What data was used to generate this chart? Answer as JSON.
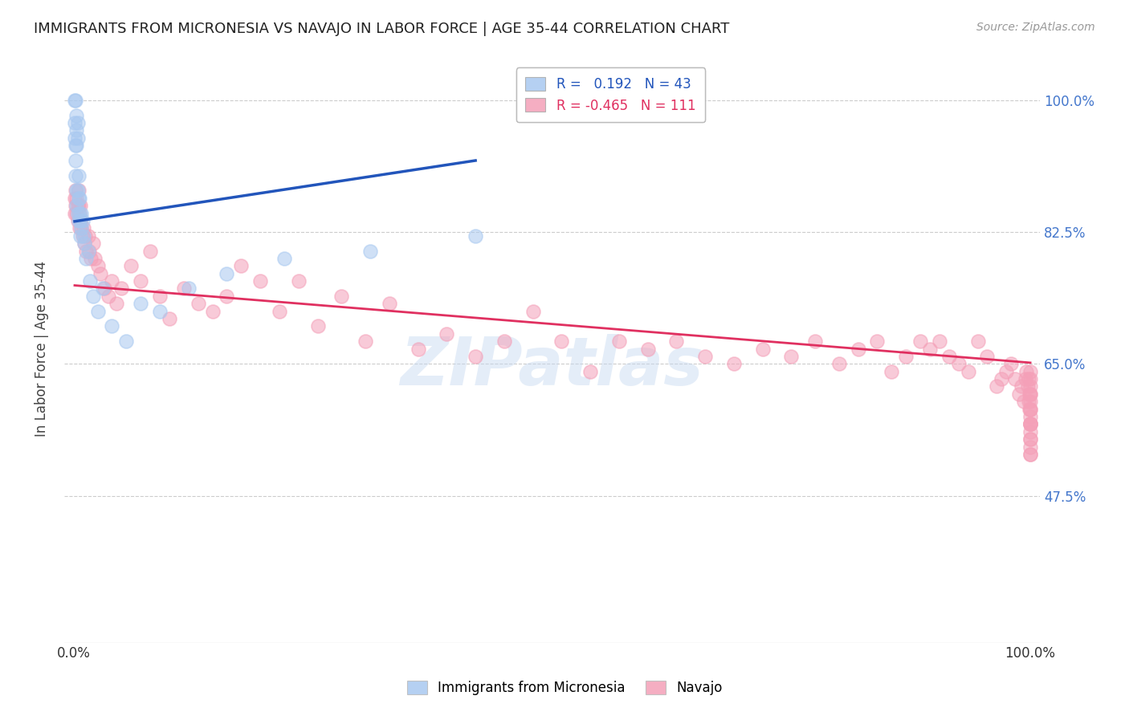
{
  "title": "IMMIGRANTS FROM MICRONESIA VS NAVAJO IN LABOR FORCE | AGE 35-44 CORRELATION CHART",
  "source": "Source: ZipAtlas.com",
  "ylabel": "In Labor Force | Age 35-44",
  "xlim": [
    -0.01,
    1.01
  ],
  "ylim": [
    0.28,
    1.06
  ],
  "yticks": [
    0.475,
    0.65,
    0.825,
    1.0
  ],
  "ytick_labels": [
    "47.5%",
    "65.0%",
    "82.5%",
    "100.0%"
  ],
  "xticks": [
    0.0,
    0.5,
    1.0
  ],
  "xtick_labels": [
    "0.0%",
    "",
    "100.0%"
  ],
  "r_blue": 0.192,
  "n_blue": 43,
  "r_pink": -0.465,
  "n_pink": 111,
  "blue_color": "#A8C8F0",
  "pink_color": "#F4A0B8",
  "blue_line_color": "#2255BB",
  "pink_line_color": "#E03060",
  "legend_blue_label": "Immigrants from Micronesia",
  "legend_pink_label": "Navajo",
  "watermark": "ZIPatlas",
  "background_color": "#FFFFFF",
  "grid_color": "#CCCCCC",
  "title_color": "#222222",
  "axis_label_color": "#444444",
  "right_tick_color": "#4477CC",
  "blue_x": [
    0.001,
    0.001,
    0.001,
    0.002,
    0.002,
    0.002,
    0.002,
    0.003,
    0.003,
    0.003,
    0.003,
    0.003,
    0.004,
    0.004,
    0.004,
    0.004,
    0.005,
    0.005,
    0.005,
    0.006,
    0.006,
    0.007,
    0.007,
    0.008,
    0.008,
    0.009,
    0.01,
    0.011,
    0.013,
    0.015,
    0.017,
    0.02,
    0.025,
    0.03,
    0.04,
    0.055,
    0.07,
    0.09,
    0.12,
    0.16,
    0.22,
    0.31,
    0.42
  ],
  "blue_y": [
    1.0,
    0.97,
    0.95,
    0.94,
    0.92,
    0.9,
    1.0,
    0.98,
    0.96,
    0.94,
    0.88,
    0.86,
    0.97,
    0.95,
    0.88,
    0.85,
    0.9,
    0.87,
    0.84,
    0.87,
    0.85,
    0.84,
    0.82,
    0.85,
    0.83,
    0.84,
    0.82,
    0.81,
    0.79,
    0.8,
    0.76,
    0.74,
    0.72,
    0.75,
    0.7,
    0.68,
    0.73,
    0.72,
    0.75,
    0.77,
    0.79,
    0.8,
    0.82
  ],
  "pink_x": [
    0.001,
    0.001,
    0.002,
    0.002,
    0.003,
    0.003,
    0.004,
    0.004,
    0.005,
    0.005,
    0.006,
    0.006,
    0.007,
    0.007,
    0.008,
    0.009,
    0.01,
    0.011,
    0.012,
    0.013,
    0.015,
    0.016,
    0.018,
    0.02,
    0.022,
    0.025,
    0.028,
    0.032,
    0.036,
    0.04,
    0.045,
    0.05,
    0.06,
    0.07,
    0.08,
    0.09,
    0.1,
    0.115,
    0.13,
    0.145,
    0.16,
    0.175,
    0.195,
    0.215,
    0.235,
    0.255,
    0.28,
    0.305,
    0.33,
    0.36,
    0.39,
    0.42,
    0.45,
    0.48,
    0.51,
    0.54,
    0.57,
    0.6,
    0.63,
    0.66,
    0.69,
    0.72,
    0.75,
    0.775,
    0.8,
    0.82,
    0.84,
    0.855,
    0.87,
    0.885,
    0.895,
    0.905,
    0.915,
    0.925,
    0.935,
    0.945,
    0.955,
    0.965,
    0.97,
    0.975,
    0.98,
    0.984,
    0.988,
    0.991,
    0.993,
    0.995,
    0.996,
    0.997,
    0.998,
    0.998,
    0.999,
    0.999,
    1.0,
    1.0,
    1.0,
    1.0,
    1.0,
    1.0,
    1.0,
    1.0,
    1.0,
    1.0,
    1.0,
    1.0,
    1.0,
    1.0,
    1.0,
    1.0,
    1.0,
    1.0,
    1.0
  ],
  "pink_y": [
    0.87,
    0.85,
    0.88,
    0.86,
    0.87,
    0.85,
    0.86,
    0.84,
    0.88,
    0.86,
    0.85,
    0.83,
    0.86,
    0.84,
    0.83,
    0.82,
    0.83,
    0.81,
    0.82,
    0.8,
    0.82,
    0.8,
    0.79,
    0.81,
    0.79,
    0.78,
    0.77,
    0.75,
    0.74,
    0.76,
    0.73,
    0.75,
    0.78,
    0.76,
    0.8,
    0.74,
    0.71,
    0.75,
    0.73,
    0.72,
    0.74,
    0.78,
    0.76,
    0.72,
    0.76,
    0.7,
    0.74,
    0.68,
    0.73,
    0.67,
    0.69,
    0.66,
    0.68,
    0.72,
    0.68,
    0.64,
    0.68,
    0.67,
    0.68,
    0.66,
    0.65,
    0.67,
    0.66,
    0.68,
    0.65,
    0.67,
    0.68,
    0.64,
    0.66,
    0.68,
    0.67,
    0.68,
    0.66,
    0.65,
    0.64,
    0.68,
    0.66,
    0.62,
    0.63,
    0.64,
    0.65,
    0.63,
    0.61,
    0.62,
    0.6,
    0.63,
    0.64,
    0.62,
    0.6,
    0.63,
    0.61,
    0.59,
    0.64,
    0.62,
    0.6,
    0.63,
    0.61,
    0.57,
    0.59,
    0.61,
    0.59,
    0.57,
    0.58,
    0.56,
    0.54,
    0.57,
    0.55,
    0.53,
    0.57,
    0.55,
    0.53
  ]
}
